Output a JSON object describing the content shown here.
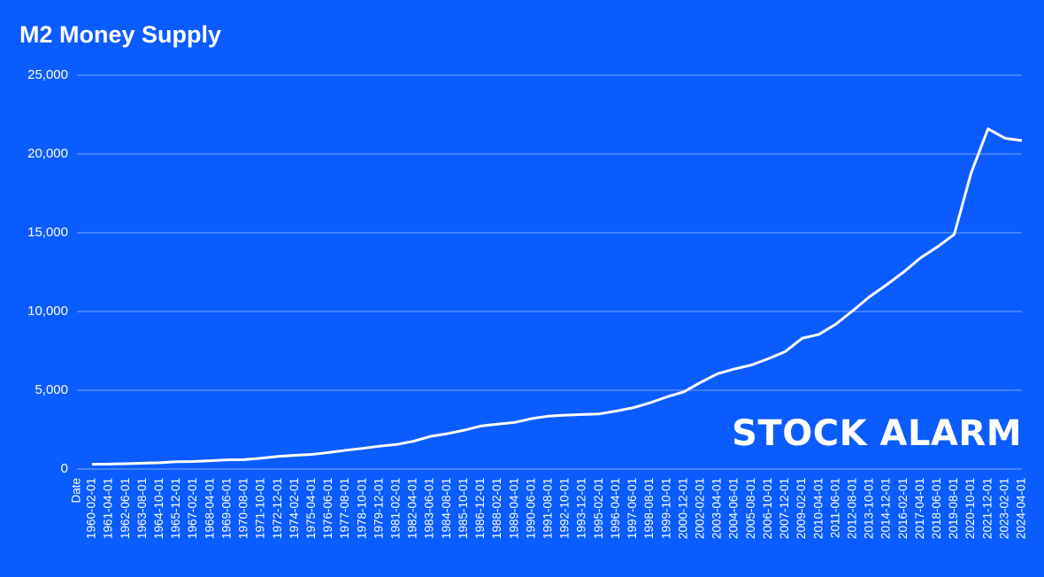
{
  "chart_data": {
    "type": "line",
    "title": "M2 Money Supply",
    "x_label": "Date",
    "watermark": "STOCK ALARM",
    "categories": [
      "1960-02-01",
      "1961-04-01",
      "1962-06-01",
      "1963-08-01",
      "1964-10-01",
      "1965-12-01",
      "1967-02-01",
      "1968-04-01",
      "1969-06-01",
      "1970-08-01",
      "1971-10-01",
      "1972-12-01",
      "1974-02-01",
      "1975-04-01",
      "1976-06-01",
      "1977-08-01",
      "1978-10-01",
      "1979-12-01",
      "1981-02-01",
      "1982-04-01",
      "1983-06-01",
      "1984-08-01",
      "1985-10-01",
      "1986-12-01",
      "1988-02-01",
      "1989-04-01",
      "1990-06-01",
      "1991-08-01",
      "1992-10-01",
      "1993-12-01",
      "1995-02-01",
      "1996-04-01",
      "1997-06-01",
      "1998-08-01",
      "1999-10-01",
      "2000-12-01",
      "2002-02-01",
      "2003-04-01",
      "2004-06-01",
      "2005-08-01",
      "2006-10-01",
      "2007-12-01",
      "2009-02-01",
      "2010-04-01",
      "2011-06-01",
      "2012-08-01",
      "2013-10-01",
      "2014-12-01",
      "2016-02-01",
      "2017-04-01",
      "2018-06-01",
      "2019-08-01",
      "2020-10-01",
      "2021-12-01",
      "2023-02-01",
      "2024-04-01"
    ],
    "values": [
      300,
      315,
      340,
      370,
      400,
      460,
      480,
      530,
      580,
      600,
      690,
      800,
      870,
      930,
      1050,
      1190,
      1310,
      1450,
      1560,
      1760,
      2070,
      2240,
      2460,
      2730,
      2850,
      2960,
      3200,
      3360,
      3420,
      3460,
      3500,
      3680,
      3890,
      4200,
      4580,
      4900,
      5500,
      6050,
      6350,
      6600,
      7000,
      7450,
      8300,
      8550,
      9200,
      10050,
      10950,
      11700,
      12500,
      13400,
      14100,
      14900,
      18800,
      21600,
      21000,
      20850
    ],
    "color": "#ffffff",
    "ylim": [
      0,
      25000
    ],
    "yticks": [
      0,
      {
        "value": 5000,
        "label": "5,000"
      },
      {
        "value": 10000,
        "label": "10,000"
      },
      {
        "value": 15000,
        "label": "15,000"
      },
      {
        "value": 20000,
        "label": "20,000"
      },
      {
        "value": 25000,
        "label": "25,000"
      }
    ],
    "grid": true
  }
}
